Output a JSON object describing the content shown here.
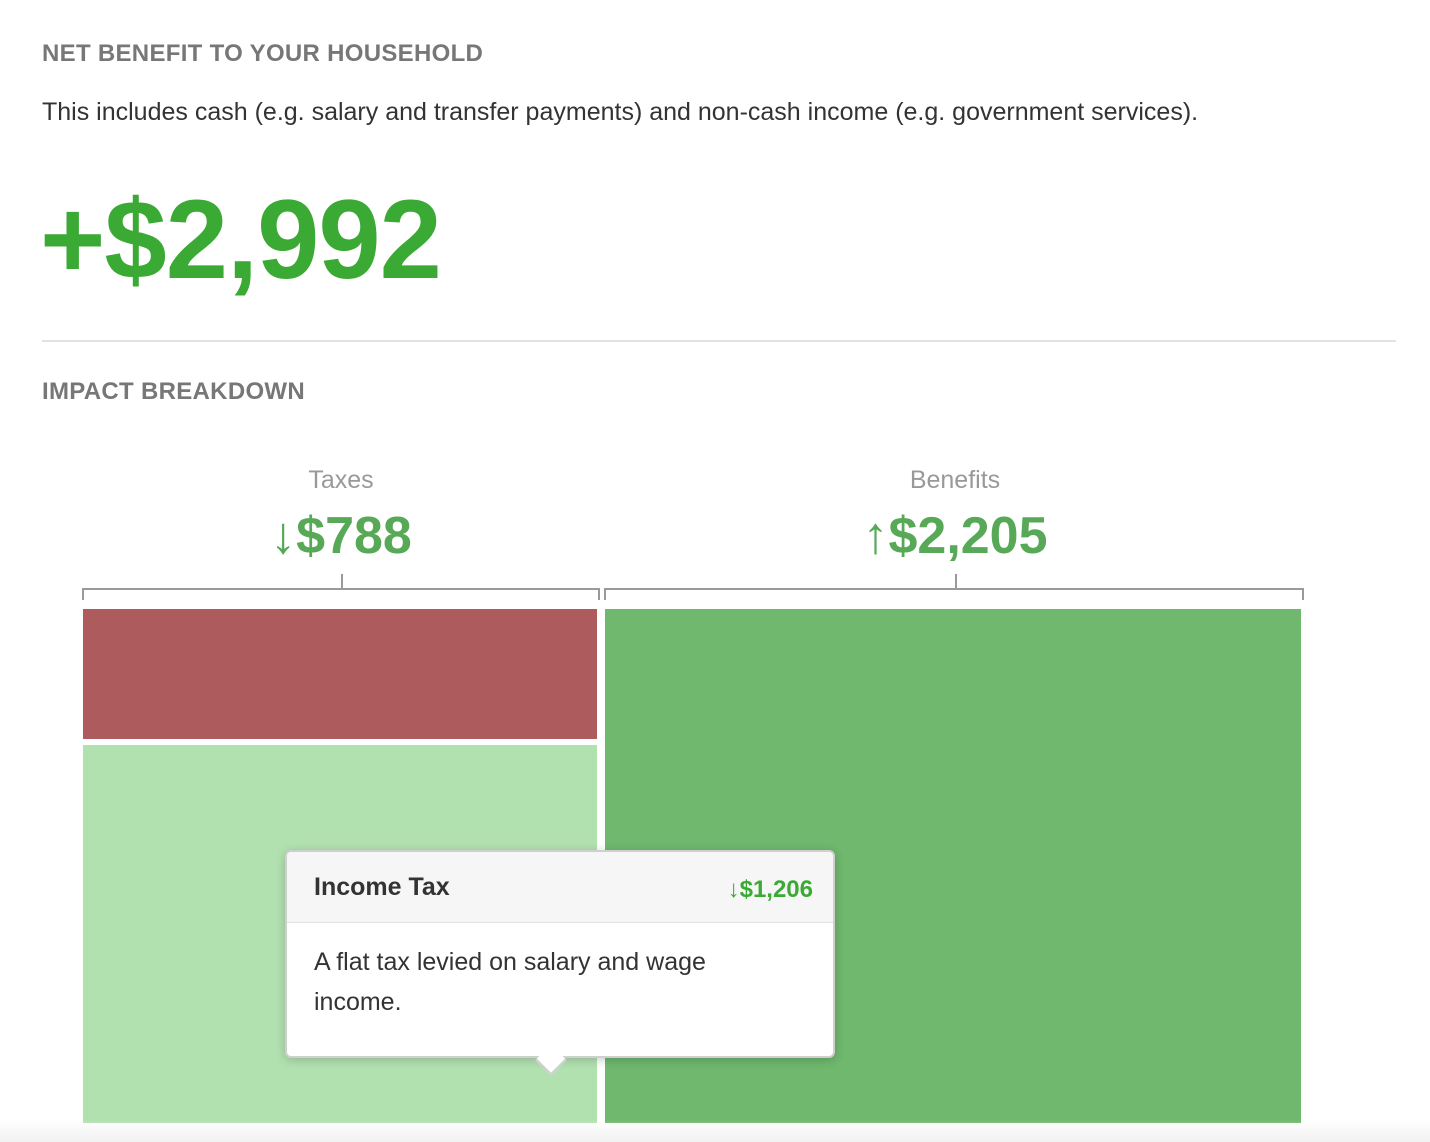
{
  "net_section": {
    "heading": "NET BENEFIT TO YOUR HOUSEHOLD",
    "description": "This includes cash (e.g. salary and transfer payments) and non-cash income (e.g. government services).",
    "value": "+$2,992"
  },
  "impact_section": {
    "heading": "IMPACT BREAKDOWN"
  },
  "colors": {
    "positive_green": "#3aaa35",
    "label_gray": "#999999",
    "tax_red": "#ad5b5c",
    "income_tax_light_green": "#b2e1b0",
    "benefits_green": "#6fb86e"
  },
  "chart_data": {
    "type": "treemap",
    "groups": [
      {
        "label": "Taxes",
        "arrow": "↓",
        "value_text": "$788",
        "value": 788
      },
      {
        "label": "Benefits",
        "arrow": "↑",
        "value_text": "$2,205",
        "value": 2205
      }
    ],
    "cells": [
      {
        "group": "Taxes",
        "color": "#ad5b5c"
      },
      {
        "group": "Taxes",
        "name": "Income Tax",
        "color": "#b2e1b0"
      },
      {
        "group": "Benefits",
        "color": "#6fb86e"
      }
    ]
  },
  "tooltip": {
    "title": "Income Tax",
    "arrow": "↓",
    "value": "$1,206",
    "description": "A flat tax levied on salary and wage income."
  }
}
